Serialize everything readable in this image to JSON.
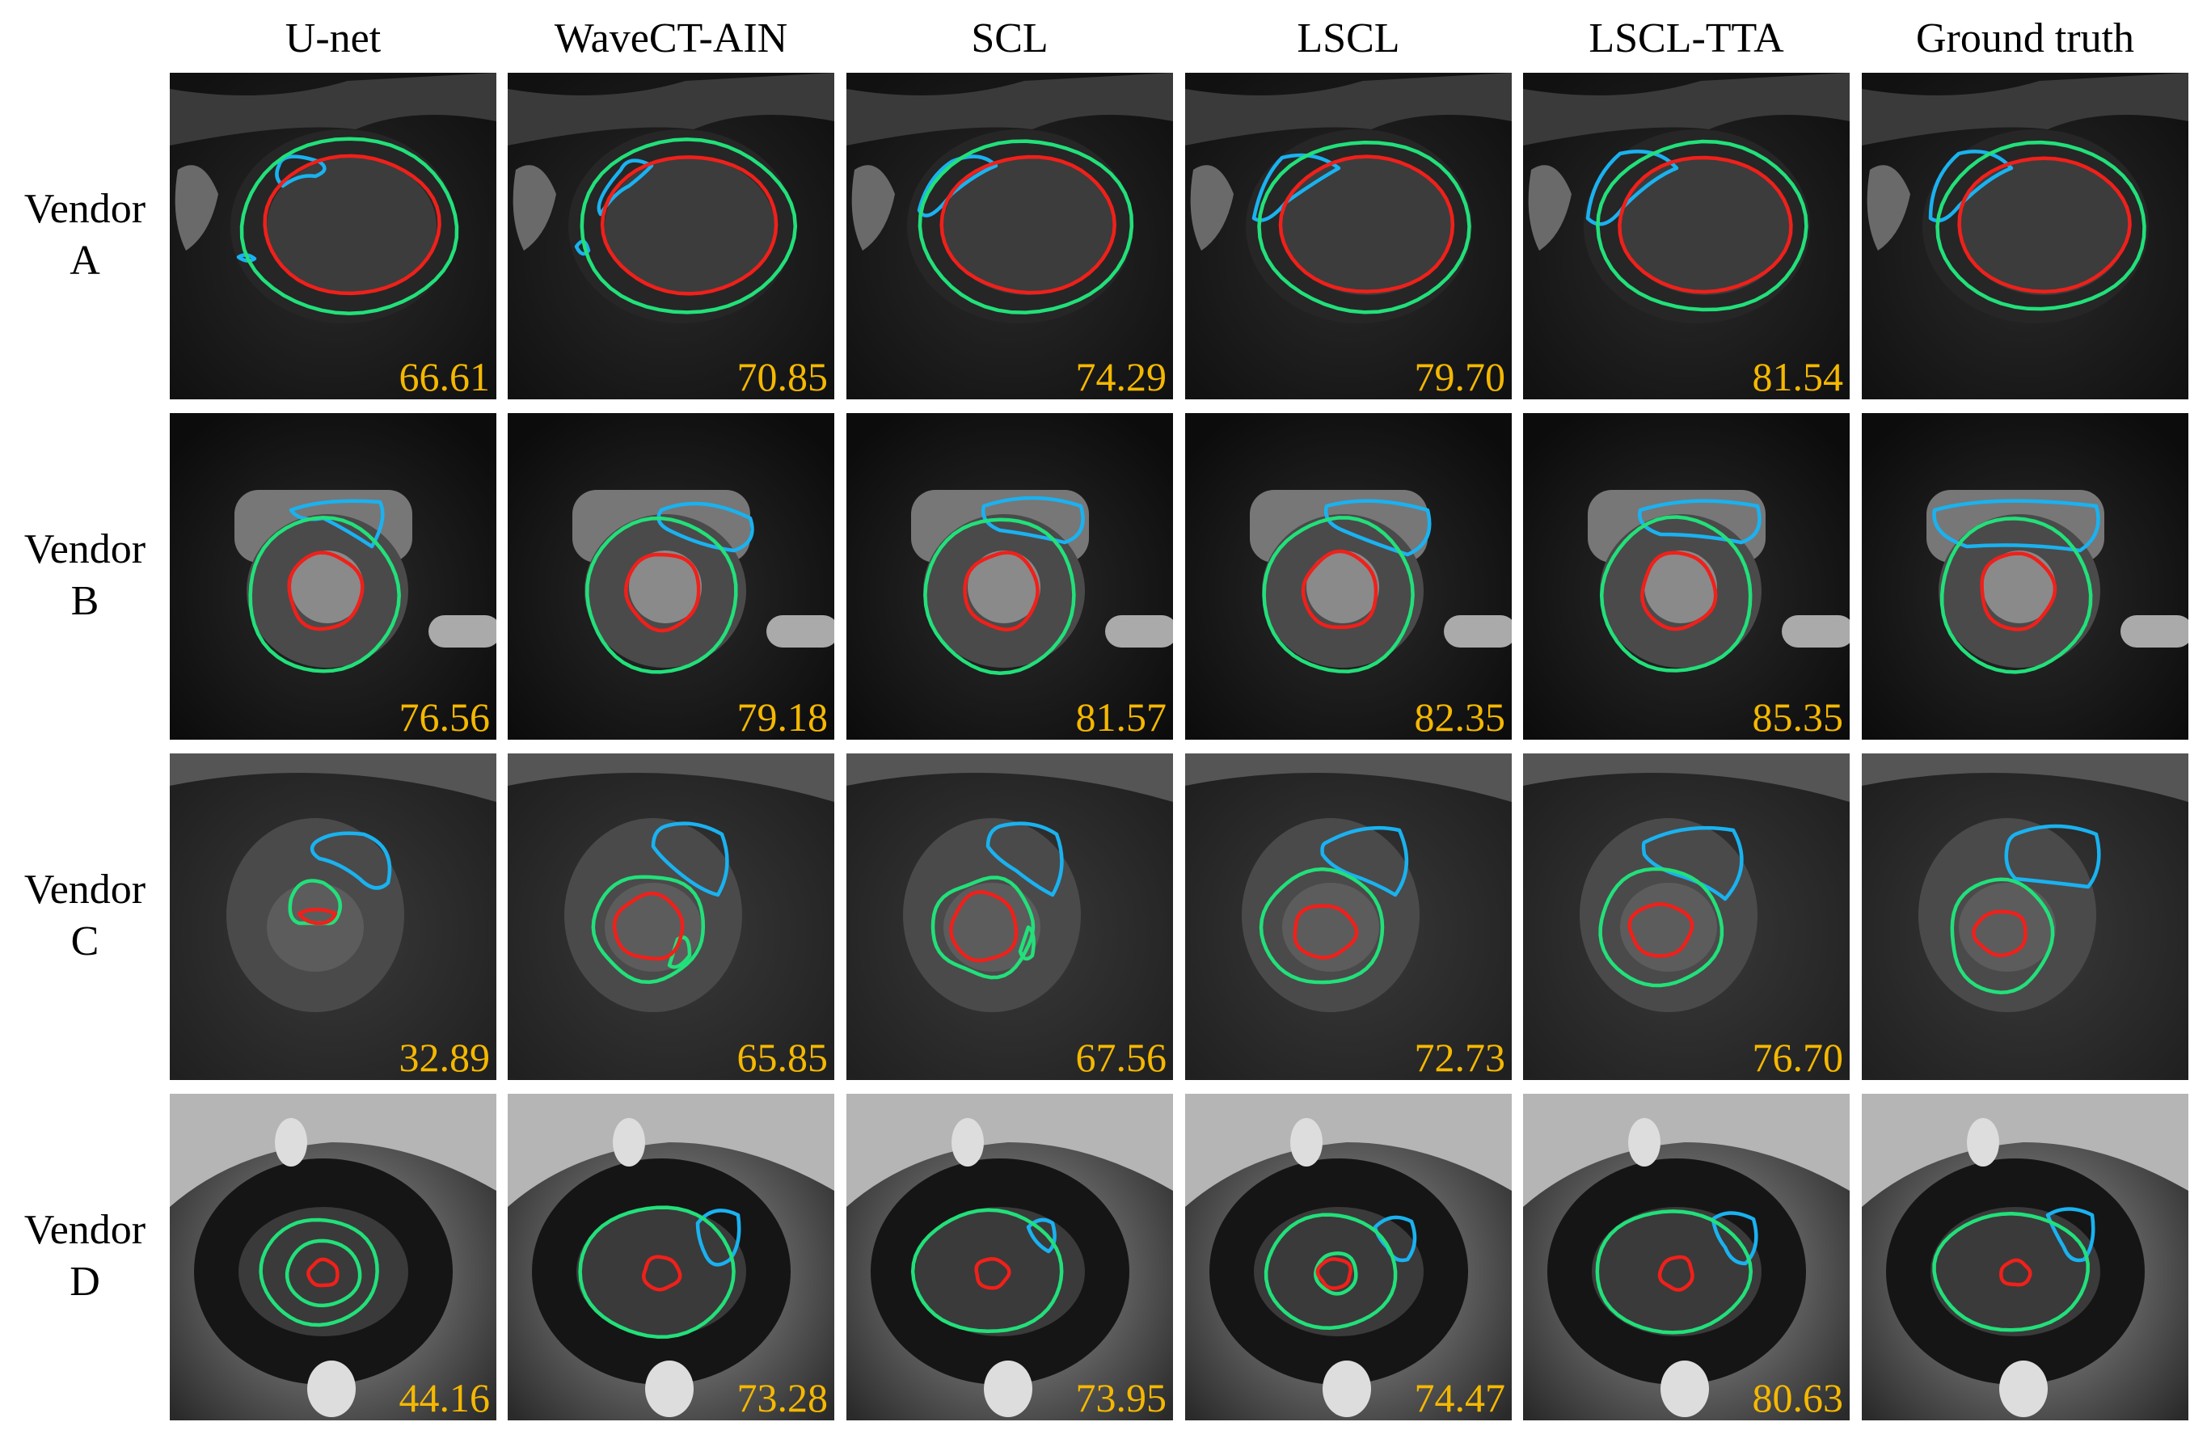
{
  "colors": {
    "score": "#f5b800",
    "rv_contour": "#1ab2f0",
    "myo_contour": "#22e07a",
    "lv_contour": "#f0201a"
  },
  "columns": [
    "U-net",
    "WaveCT-AIN",
    "SCL",
    "LSCL",
    "LSCL-TTA",
    "Ground truth"
  ],
  "rows": [
    {
      "label_line1": "Vendor",
      "label_line2": "A",
      "scores": [
        "66.61",
        "70.85",
        "74.29",
        "79.70",
        "81.54",
        ""
      ]
    },
    {
      "label_line1": "Vendor",
      "label_line2": "B",
      "scores": [
        "76.56",
        "79.18",
        "81.57",
        "82.35",
        "85.35",
        ""
      ]
    },
    {
      "label_line1": "Vendor",
      "label_line2": "C",
      "scores": [
        "32.89",
        "65.85",
        "67.56",
        "72.73",
        "76.70",
        ""
      ]
    },
    {
      "label_line1": "Vendor",
      "label_line2": "D",
      "scores": [
        "44.16",
        "73.28",
        "73.95",
        "74.47",
        "80.63",
        ""
      ]
    }
  ]
}
